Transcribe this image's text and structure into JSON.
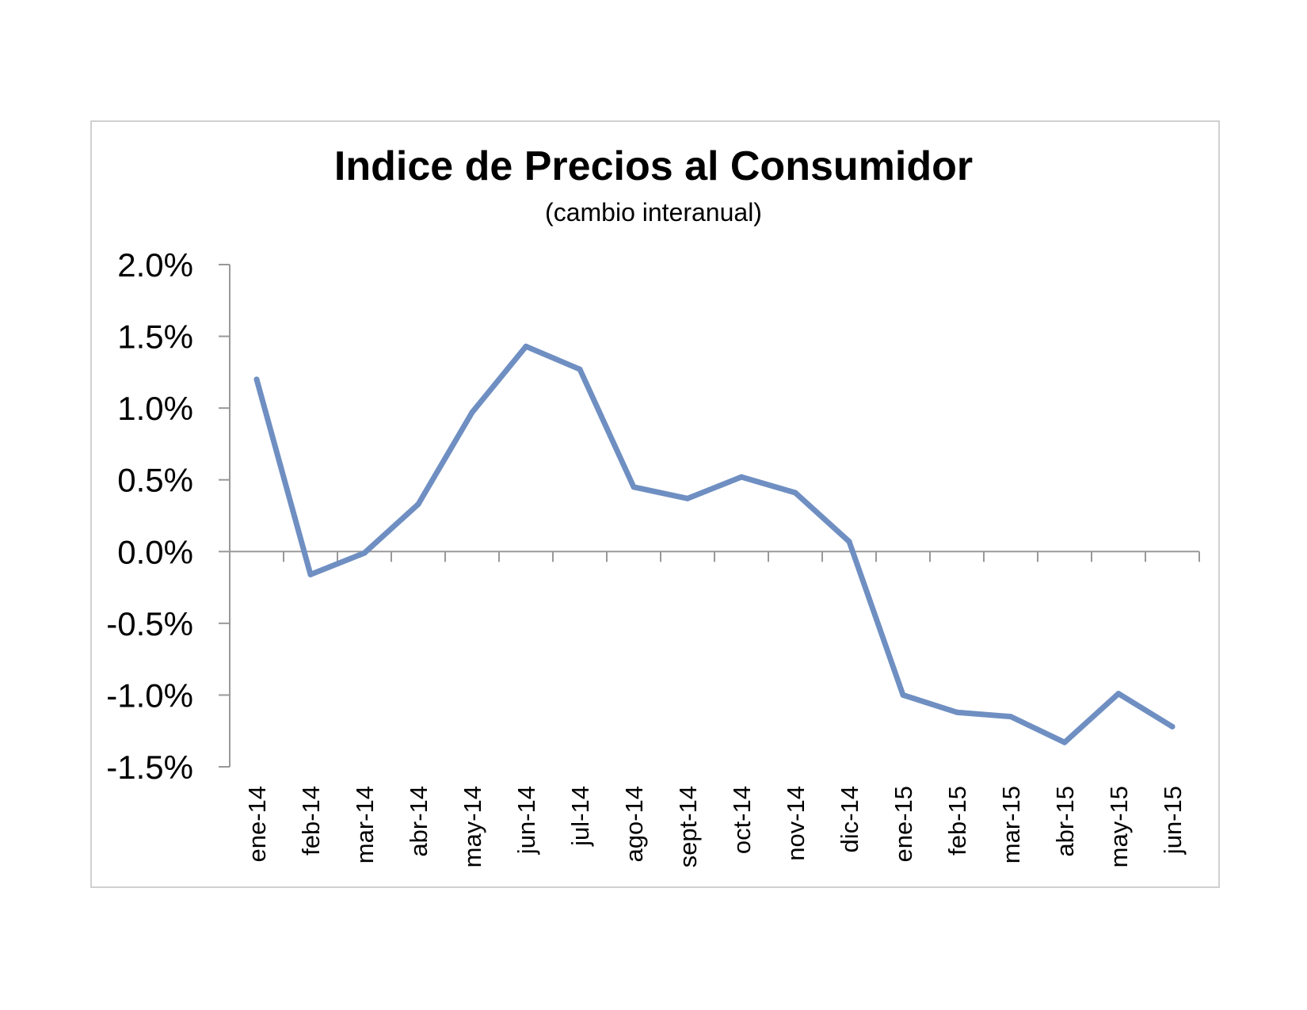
{
  "chart_data": {
    "type": "line",
    "title": "Indice de Precios al Consumidor",
    "subtitle": "(cambio interanual)",
    "xlabel": "",
    "ylabel": "",
    "categories": [
      "ene-14",
      "feb-14",
      "mar-14",
      "abr-14",
      "may-14",
      "jun-14",
      "jul-14",
      "ago-14",
      "sept-14",
      "oct-14",
      "nov-14",
      "dic-14",
      "ene-15",
      "feb-15",
      "mar-15",
      "abr-15",
      "may-15",
      "jun-15"
    ],
    "series": [
      {
        "values": [
          1.2,
          -0.16,
          -0.01,
          0.33,
          0.97,
          1.43,
          1.27,
          0.45,
          0.37,
          0.52,
          0.41,
          0.07,
          -1.0,
          -1.12,
          -1.15,
          -1.33,
          -0.99,
          -1.22
        ],
        "color": "#6f8fc2"
      }
    ],
    "yticks": [
      "2.0%",
      "1.5%",
      "1.0%",
      "0.5%",
      "0.0%",
      "-0.5%",
      "-1.0%",
      "-1.5%"
    ],
    "ytick_values": [
      2.0,
      1.5,
      1.0,
      0.5,
      0.0,
      -0.5,
      -1.0,
      -1.5
    ],
    "ylim": [
      -1.5,
      2.0
    ],
    "grid": false,
    "legend": "none"
  }
}
